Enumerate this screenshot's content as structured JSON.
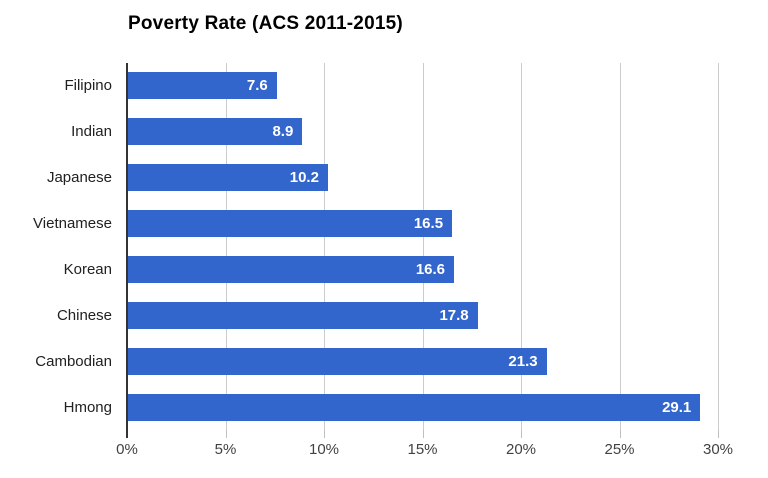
{
  "title": "Poverty Rate (ACS 2011-2015)",
  "colors": {
    "bar": "#3366cc",
    "gridline": "#cccccc",
    "axis_line": "#333333",
    "value_label": "#ffffff",
    "category_label": "#212121",
    "tick_label": "#424242",
    "background": "#ffffff"
  },
  "chart_data": {
    "type": "bar",
    "orientation": "horizontal",
    "title": "Poverty Rate (ACS 2011-2015)",
    "categories": [
      "Filipino",
      "Indian",
      "Japanese",
      "Vietnamese",
      "Korean",
      "Chinese",
      "Cambodian",
      "Hmong"
    ],
    "values": [
      7.6,
      8.9,
      10.2,
      16.5,
      16.6,
      17.8,
      21.3,
      29.1
    ],
    "value_labels": [
      "7.6",
      "8.9",
      "10.2",
      "16.5",
      "16.6",
      "17.8",
      "21.3",
      "29.1"
    ],
    "xlabel": "",
    "ylabel": "",
    "x_ticks": [
      "0%",
      "5%",
      "10%",
      "15%",
      "20%",
      "25%",
      "30%"
    ],
    "x_tick_values": [
      0,
      5,
      10,
      15,
      20,
      25,
      30
    ],
    "xlim": [
      0,
      30
    ],
    "grid": true,
    "legend": "none",
    "value_labels_position": "inside-end"
  }
}
